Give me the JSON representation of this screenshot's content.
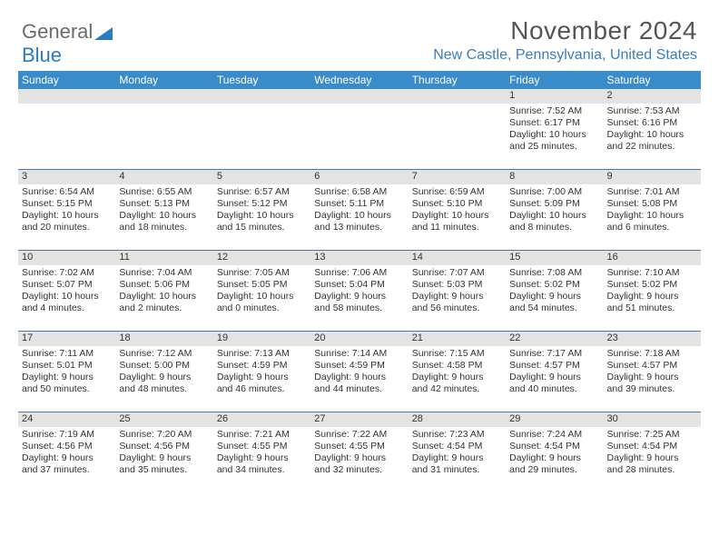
{
  "logo": {
    "text1": "General",
    "text2": "Blue"
  },
  "header": {
    "month_title": "November 2024",
    "location": "New Castle, Pennsylvania, United States"
  },
  "colors": {
    "header_bar": "#3a8bc9",
    "location_text": "#3a7db8",
    "week_border": "#3a7db8",
    "daynum_bg": "#e3e3e3",
    "body_text": "#333333",
    "logo_gray": "#6b6b6b",
    "logo_blue": "#2b7bbf"
  },
  "typography": {
    "month_title_fontsize": 28,
    "location_fontsize": 16,
    "weekday_fontsize": 12,
    "daynum_fontsize": 11,
    "daytext_fontsize": 10.5
  },
  "weekdays": [
    "Sunday",
    "Monday",
    "Tuesday",
    "Wednesday",
    "Thursday",
    "Friday",
    "Saturday"
  ],
  "weeks": [
    [
      {
        "num": "",
        "lines": [
          "",
          "",
          "",
          ""
        ]
      },
      {
        "num": "",
        "lines": [
          "",
          "",
          "",
          ""
        ]
      },
      {
        "num": "",
        "lines": [
          "",
          "",
          "",
          ""
        ]
      },
      {
        "num": "",
        "lines": [
          "",
          "",
          "",
          ""
        ]
      },
      {
        "num": "",
        "lines": [
          "",
          "",
          "",
          ""
        ]
      },
      {
        "num": "1",
        "lines": [
          "Sunrise: 7:52 AM",
          "Sunset: 6:17 PM",
          "Daylight: 10 hours",
          "and 25 minutes."
        ]
      },
      {
        "num": "2",
        "lines": [
          "Sunrise: 7:53 AM",
          "Sunset: 6:16 PM",
          "Daylight: 10 hours",
          "and 22 minutes."
        ]
      }
    ],
    [
      {
        "num": "3",
        "lines": [
          "Sunrise: 6:54 AM",
          "Sunset: 5:15 PM",
          "Daylight: 10 hours",
          "and 20 minutes."
        ]
      },
      {
        "num": "4",
        "lines": [
          "Sunrise: 6:55 AM",
          "Sunset: 5:13 PM",
          "Daylight: 10 hours",
          "and 18 minutes."
        ]
      },
      {
        "num": "5",
        "lines": [
          "Sunrise: 6:57 AM",
          "Sunset: 5:12 PM",
          "Daylight: 10 hours",
          "and 15 minutes."
        ]
      },
      {
        "num": "6",
        "lines": [
          "Sunrise: 6:58 AM",
          "Sunset: 5:11 PM",
          "Daylight: 10 hours",
          "and 13 minutes."
        ]
      },
      {
        "num": "7",
        "lines": [
          "Sunrise: 6:59 AM",
          "Sunset: 5:10 PM",
          "Daylight: 10 hours",
          "and 11 minutes."
        ]
      },
      {
        "num": "8",
        "lines": [
          "Sunrise: 7:00 AM",
          "Sunset: 5:09 PM",
          "Daylight: 10 hours",
          "and 8 minutes."
        ]
      },
      {
        "num": "9",
        "lines": [
          "Sunrise: 7:01 AM",
          "Sunset: 5:08 PM",
          "Daylight: 10 hours",
          "and 6 minutes."
        ]
      }
    ],
    [
      {
        "num": "10",
        "lines": [
          "Sunrise: 7:02 AM",
          "Sunset: 5:07 PM",
          "Daylight: 10 hours",
          "and 4 minutes."
        ]
      },
      {
        "num": "11",
        "lines": [
          "Sunrise: 7:04 AM",
          "Sunset: 5:06 PM",
          "Daylight: 10 hours",
          "and 2 minutes."
        ]
      },
      {
        "num": "12",
        "lines": [
          "Sunrise: 7:05 AM",
          "Sunset: 5:05 PM",
          "Daylight: 10 hours",
          "and 0 minutes."
        ]
      },
      {
        "num": "13",
        "lines": [
          "Sunrise: 7:06 AM",
          "Sunset: 5:04 PM",
          "Daylight: 9 hours",
          "and 58 minutes."
        ]
      },
      {
        "num": "14",
        "lines": [
          "Sunrise: 7:07 AM",
          "Sunset: 5:03 PM",
          "Daylight: 9 hours",
          "and 56 minutes."
        ]
      },
      {
        "num": "15",
        "lines": [
          "Sunrise: 7:08 AM",
          "Sunset: 5:02 PM",
          "Daylight: 9 hours",
          "and 54 minutes."
        ]
      },
      {
        "num": "16",
        "lines": [
          "Sunrise: 7:10 AM",
          "Sunset: 5:02 PM",
          "Daylight: 9 hours",
          "and 51 minutes."
        ]
      }
    ],
    [
      {
        "num": "17",
        "lines": [
          "Sunrise: 7:11 AM",
          "Sunset: 5:01 PM",
          "Daylight: 9 hours",
          "and 50 minutes."
        ]
      },
      {
        "num": "18",
        "lines": [
          "Sunrise: 7:12 AM",
          "Sunset: 5:00 PM",
          "Daylight: 9 hours",
          "and 48 minutes."
        ]
      },
      {
        "num": "19",
        "lines": [
          "Sunrise: 7:13 AM",
          "Sunset: 4:59 PM",
          "Daylight: 9 hours",
          "and 46 minutes."
        ]
      },
      {
        "num": "20",
        "lines": [
          "Sunrise: 7:14 AM",
          "Sunset: 4:59 PM",
          "Daylight: 9 hours",
          "and 44 minutes."
        ]
      },
      {
        "num": "21",
        "lines": [
          "Sunrise: 7:15 AM",
          "Sunset: 4:58 PM",
          "Daylight: 9 hours",
          "and 42 minutes."
        ]
      },
      {
        "num": "22",
        "lines": [
          "Sunrise: 7:17 AM",
          "Sunset: 4:57 PM",
          "Daylight: 9 hours",
          "and 40 minutes."
        ]
      },
      {
        "num": "23",
        "lines": [
          "Sunrise: 7:18 AM",
          "Sunset: 4:57 PM",
          "Daylight: 9 hours",
          "and 39 minutes."
        ]
      }
    ],
    [
      {
        "num": "24",
        "lines": [
          "Sunrise: 7:19 AM",
          "Sunset: 4:56 PM",
          "Daylight: 9 hours",
          "and 37 minutes."
        ]
      },
      {
        "num": "25",
        "lines": [
          "Sunrise: 7:20 AM",
          "Sunset: 4:56 PM",
          "Daylight: 9 hours",
          "and 35 minutes."
        ]
      },
      {
        "num": "26",
        "lines": [
          "Sunrise: 7:21 AM",
          "Sunset: 4:55 PM",
          "Daylight: 9 hours",
          "and 34 minutes."
        ]
      },
      {
        "num": "27",
        "lines": [
          "Sunrise: 7:22 AM",
          "Sunset: 4:55 PM",
          "Daylight: 9 hours",
          "and 32 minutes."
        ]
      },
      {
        "num": "28",
        "lines": [
          "Sunrise: 7:23 AM",
          "Sunset: 4:54 PM",
          "Daylight: 9 hours",
          "and 31 minutes."
        ]
      },
      {
        "num": "29",
        "lines": [
          "Sunrise: 7:24 AM",
          "Sunset: 4:54 PM",
          "Daylight: 9 hours",
          "and 29 minutes."
        ]
      },
      {
        "num": "30",
        "lines": [
          "Sunrise: 7:25 AM",
          "Sunset: 4:54 PM",
          "Daylight: 9 hours",
          "and 28 minutes."
        ]
      }
    ]
  ]
}
